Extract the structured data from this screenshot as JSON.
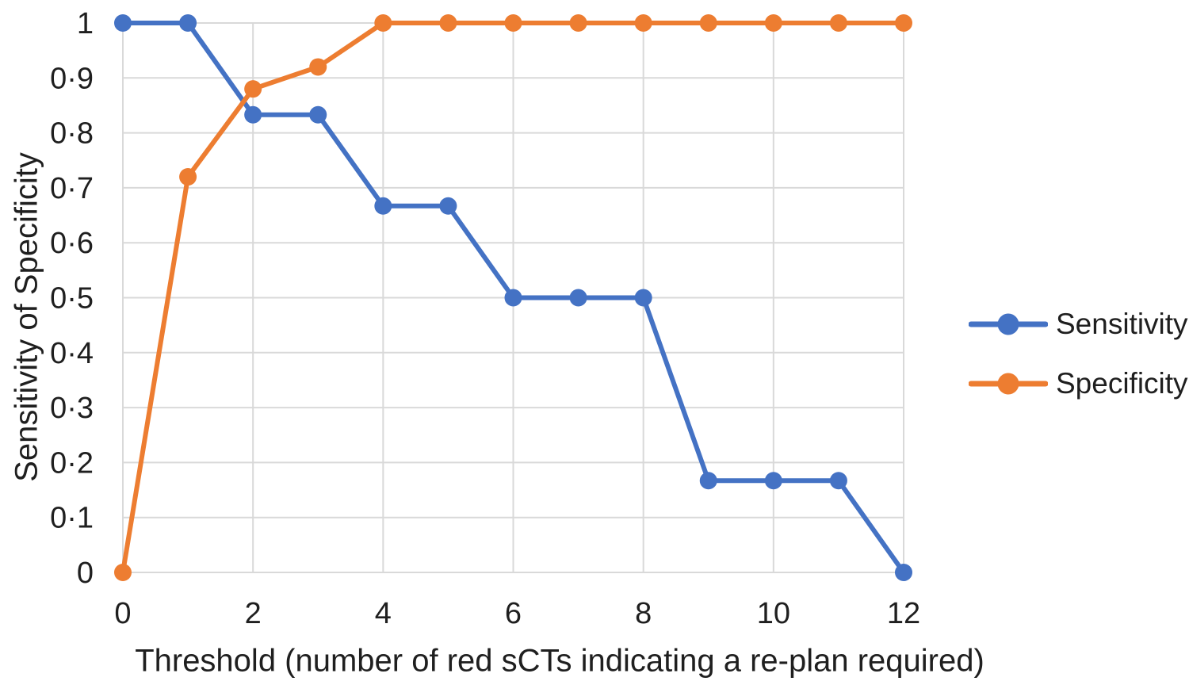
{
  "chart_data": {
    "type": "line",
    "x": [
      0,
      1,
      2,
      3,
      4,
      5,
      6,
      7,
      8,
      9,
      10,
      11,
      12
    ],
    "series": [
      {
        "name": "Sensitivity",
        "color": "#4472C4",
        "values": [
          1,
          1,
          0.833,
          0.833,
          0.667,
          0.667,
          0.5,
          0.5,
          0.5,
          0.167,
          0.167,
          0.167,
          0
        ]
      },
      {
        "name": "Specificity",
        "color": "#ED7D31",
        "values": [
          0,
          0.72,
          0.88,
          0.92,
          1,
          1,
          1,
          1,
          1,
          1,
          1,
          1,
          1
        ]
      }
    ],
    "xlabel": "Threshold (number of red sCTs indicating a re-plan required)",
    "ylabel": "Sensitivity of Specificity",
    "xlim": [
      0,
      12
    ],
    "ylim": [
      0,
      1
    ],
    "x_ticks": [
      0,
      2,
      4,
      6,
      8,
      10,
      12
    ],
    "x_tick_labels": [
      "0",
      "2",
      "4",
      "6",
      "8",
      "10",
      "12"
    ],
    "y_tick_values": [
      1,
      0.9,
      0.8,
      0.7,
      0.6,
      0.5,
      0.4,
      0.3,
      0.2,
      0.1,
      0
    ],
    "y_tick_labels": [
      "1",
      "0·9",
      "0·8",
      "0·7",
      "0·6",
      "0·5",
      "0·4",
      "0·3",
      "0·2",
      "0·1",
      "0"
    ],
    "grid": true,
    "legend_position": "right",
    "colors": {
      "grid": "#D9D9D9",
      "text": "#1f1f1f",
      "background": "#ffffff"
    }
  }
}
